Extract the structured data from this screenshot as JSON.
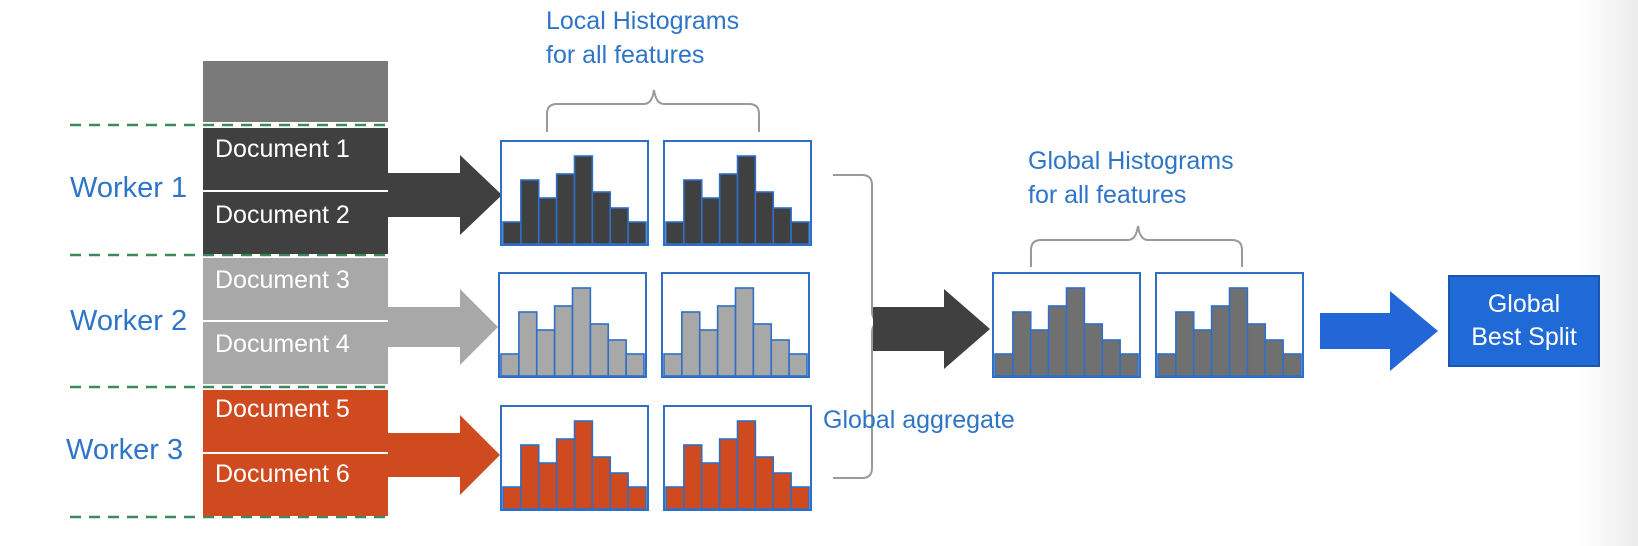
{
  "colors": {
    "dark": "#404040",
    "header": "#7a7a7a",
    "gray": "#a8a8a8",
    "orange": "#cf4a1e",
    "global": "#707070",
    "accent_blue": "#2e75c7",
    "box_blue": "#1f6ad6",
    "dashed_green": "#3a8a5a",
    "histogram_border": "#2f6fc5"
  },
  "workers": [
    {
      "label": "Worker 1",
      "color": "dark",
      "documents": [
        "Document 1",
        "Document 2"
      ]
    },
    {
      "label": "Worker 2",
      "color": "gray",
      "documents": [
        "Document 3",
        "Document 4"
      ]
    },
    {
      "label": "Worker 3",
      "color": "orange",
      "documents": [
        "Document 5",
        "Document 6"
      ]
    }
  ],
  "local_histograms": {
    "caption_line1": "Local Histograms",
    "caption_line2": "for all features",
    "bar_heights": [
      0.22,
      0.64,
      0.46,
      0.7,
      0.88,
      0.52,
      0.36,
      0.22
    ]
  },
  "aggregate_label": "Global aggregate",
  "global_histograms": {
    "caption_line1": "Global Histograms",
    "caption_line2": "for all features"
  },
  "best_split": {
    "line1": "Global",
    "line2": "Best Split"
  }
}
